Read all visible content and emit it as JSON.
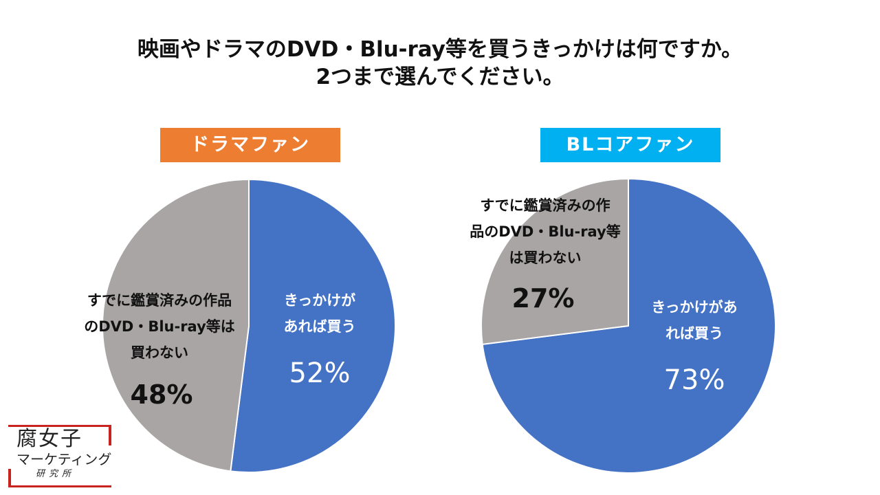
{
  "title": {
    "line1": "映画やドラマのDVD・Blu-ray等を買うきっかけは何ですか。",
    "line2": "2つまで選んでください。"
  },
  "colors": {
    "blue": "#4472C4",
    "gray": "#A8A5A4",
    "orange": "#ED7D31",
    "cyan": "#00B0F0"
  },
  "logo": {
    "row1": "腐女子",
    "row2": "マーケティング",
    "row3": "研究所"
  },
  "chart_data": [
    {
      "type": "pie",
      "title": "ドラマファン",
      "labels": [
        "きっかけがあれば買う",
        "すでに鑑賞済みの作品のDVD・Blu-ray等は買わない"
      ],
      "values": [
        52,
        48
      ],
      "display_labels": [
        {
          "lines": [
            "きっかけが",
            "あれば買う"
          ],
          "pct": "52%"
        },
        {
          "lines": [
            "すでに鑑賞済みの作品",
            "のDVD・Blu-ray等は",
            "買わない"
          ],
          "pct": "48%"
        }
      ],
      "colors": [
        "#4472C4",
        "#A8A5A4"
      ],
      "start_angle_deg": 0,
      "direction": "clockwise"
    },
    {
      "type": "pie",
      "title": "BLコアファン",
      "labels": [
        "きっかけがあれば買う",
        "すでに鑑賞済みの作品のDVD・Blu-ray等は買わない"
      ],
      "values": [
        73,
        27
      ],
      "display_labels": [
        {
          "lines": [
            "きっかけがあ",
            "れば買う"
          ],
          "pct": "73%"
        },
        {
          "lines": [
            "すでに鑑賞済みの作",
            "品のDVD・Blu-ray等",
            "は買わない"
          ],
          "pct": "27%"
        }
      ],
      "colors": [
        "#4472C4",
        "#A8A5A4"
      ],
      "start_angle_deg": 0,
      "direction": "clockwise"
    }
  ]
}
